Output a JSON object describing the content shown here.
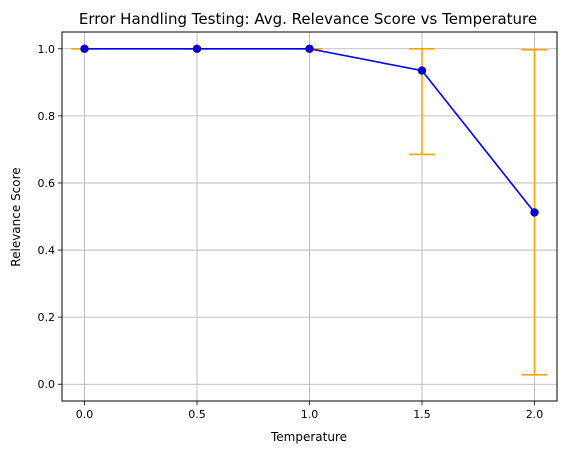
{
  "chart_data": {
    "type": "line",
    "title": "Error Handling Testing: Avg. Relevance Score vs Temperature",
    "xlabel": "Temperature",
    "ylabel": "Relevance Score",
    "xlim": [
      -0.1,
      2.1
    ],
    "ylim": [
      -0.05,
      1.05
    ],
    "xticks": [
      "0.0",
      "0.5",
      "1.0",
      "1.5",
      "2.0"
    ],
    "yticks": [
      "0.0",
      "0.2",
      "0.4",
      "0.6",
      "0.8",
      "1.0"
    ],
    "grid": true,
    "series": [
      {
        "x": [
          0.0,
          0.5,
          1.0,
          1.5,
          2.0
        ],
        "y": [
          1.0,
          1.0,
          1.0,
          0.935,
          0.512
        ],
        "error_low": [
          1.0,
          1.0,
          1.0,
          0.685,
          0.028
        ],
        "error_high": [
          1.0,
          1.0,
          1.0,
          1.0,
          0.997
        ]
      }
    ],
    "colors": {
      "line": "#0000ff",
      "marker": "#0000cc",
      "errorbar": "#ffa500",
      "grid": "#b0b0b0"
    }
  }
}
